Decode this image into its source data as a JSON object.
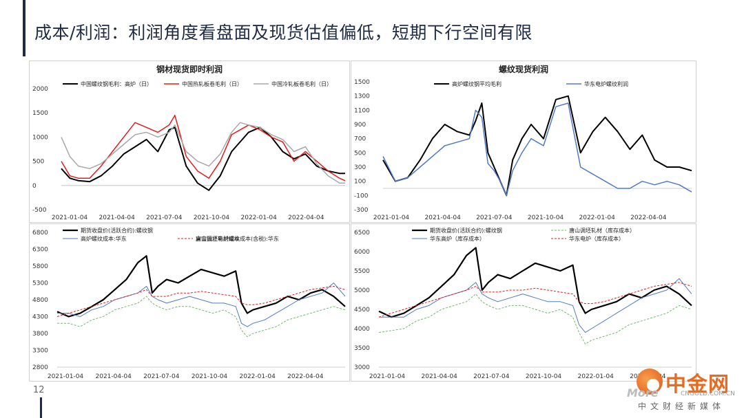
{
  "page": {
    "title": "成本/利润：利润角度看盘面及现货估值偏低，短期下行空间有限",
    "page_number": "12"
  },
  "logo": {
    "name": "中金网",
    "url": "CNGOLD.COM.CN",
    "sub": "中文财经新媒体",
    "more": "More"
  },
  "chart_data": [
    {
      "id": "c1",
      "type": "line",
      "title": "钢材现货即时利润",
      "ylim": [
        -500,
        2000
      ],
      "yticks": [
        2000,
        1500,
        1000,
        500,
        0,
        -500
      ],
      "xticks": [
        "2021-01-04",
        "2021-04-04",
        "2021-07-04",
        "2021-10-04",
        "2022-01-04",
        "2022-04-04"
      ],
      "grid": false,
      "legend": "top",
      "series": [
        {
          "name": "中国螺纹钢毛利：高炉（日）",
          "color": "#000000",
          "width": 2,
          "x": [
            0,
            3,
            6,
            10,
            14,
            18,
            22,
            26,
            30,
            34,
            38,
            40,
            44,
            48,
            52,
            56,
            60,
            63,
            66,
            70,
            74,
            78,
            82,
            86,
            90,
            94,
            98,
            100
          ],
          "y": [
            350,
            150,
            100,
            80,
            200,
            400,
            650,
            800,
            950,
            700,
            1150,
            1200,
            400,
            50,
            -100,
            200,
            700,
            900,
            1100,
            1200,
            1000,
            700,
            550,
            650,
            400,
            300,
            250,
            250
          ]
        },
        {
          "name": "中国热轧板卷毛利（日）",
          "color": "#e01b1b",
          "width": 1.5,
          "x": [
            0,
            3,
            6,
            10,
            14,
            18,
            22,
            26,
            30,
            34,
            38,
            40,
            44,
            48,
            52,
            56,
            60,
            63,
            66,
            70,
            74,
            78,
            82,
            86,
            90,
            94,
            98,
            100
          ],
          "y": [
            500,
            200,
            150,
            150,
            400,
            700,
            1000,
            1300,
            1200,
            1100,
            1250,
            1450,
            600,
            300,
            150,
            500,
            1050,
            1150,
            1250,
            1150,
            1000,
            900,
            500,
            700,
            500,
            300,
            150,
            100
          ]
        },
        {
          "name": "中国冷轧板卷毛利（日）",
          "color": "#a8a8a8",
          "width": 1.5,
          "x": [
            0,
            3,
            6,
            10,
            14,
            18,
            22,
            26,
            30,
            34,
            38,
            40,
            44,
            48,
            52,
            56,
            60,
            63,
            66,
            70,
            74,
            78,
            82,
            86,
            90,
            94,
            98,
            100
          ],
          "y": [
            1000,
            600,
            400,
            350,
            450,
            650,
            850,
            1050,
            1100,
            1000,
            1100,
            1250,
            700,
            500,
            400,
            650,
            1100,
            1300,
            1250,
            1200,
            1050,
            950,
            700,
            800,
            450,
            200,
            50,
            50
          ]
        }
      ]
    },
    {
      "id": "c2",
      "type": "line",
      "title": "螺纹现货利润",
      "ylim": [
        -300,
        1500
      ],
      "yticks": [
        1500,
        1300,
        1100,
        900,
        700,
        500,
        300,
        100,
        -100,
        -300
      ],
      "xticks": [
        "2021-01-04",
        "2021-04-04",
        "2021-07-04",
        "2021-10-04",
        "2022-01-04",
        "2022-04-04"
      ],
      "grid": false,
      "legend": "top",
      "series": [
        {
          "name": "高炉螺纹钢平均毛利",
          "color": "#000000",
          "width": 2,
          "x": [
            0,
            4,
            8,
            12,
            16,
            20,
            24,
            28,
            30,
            32,
            34,
            36,
            38,
            40,
            42,
            45,
            48,
            52,
            56,
            60,
            64,
            68,
            72,
            76,
            80,
            84,
            88,
            92,
            96,
            100
          ],
          "y": [
            400,
            100,
            150,
            400,
            700,
            900,
            800,
            750,
            950,
            1200,
            500,
            300,
            100,
            -100,
            400,
            700,
            900,
            700,
            1250,
            1300,
            500,
            800,
            1000,
            800,
            550,
            750,
            400,
            300,
            300,
            250
          ]
        },
        {
          "name": "华东电炉螺纹利润",
          "color": "#4f7ac7",
          "width": 1.5,
          "x": [
            0,
            4,
            8,
            12,
            16,
            20,
            24,
            28,
            30,
            32,
            34,
            36,
            38,
            40,
            42,
            45,
            48,
            52,
            56,
            60,
            64,
            68,
            72,
            76,
            80,
            84,
            88,
            92,
            96,
            100
          ],
          "y": [
            450,
            100,
            150,
            300,
            450,
            600,
            650,
            700,
            1100,
            1000,
            350,
            250,
            100,
            -100,
            250,
            500,
            700,
            600,
            1150,
            1200,
            300,
            200,
            100,
            0,
            0,
            100,
            50,
            100,
            50,
            -50
          ]
        }
      ]
    },
    {
      "id": "c3",
      "type": "line",
      "title": "",
      "ylim": [
        2800,
        6800
      ],
      "yticks": [
        6800,
        6300,
        5800,
        5300,
        4800,
        4300,
        3800,
        3300,
        2800
      ],
      "xticks": [
        "2021-01-04",
        "2021-04-04",
        "2021-07-04",
        "2021-10-04",
        "2022-01-04",
        "2022-04-04"
      ],
      "grid": false,
      "legend": "top",
      "series": [
        {
          "name": "期货收盘价(活跃合约):螺纹钢",
          "color": "#000000",
          "width": 2.2,
          "x": [
            0,
            4,
            8,
            12,
            16,
            20,
            24,
            28,
            31,
            33,
            35,
            38,
            42,
            46,
            50,
            54,
            58,
            62,
            64,
            66,
            68,
            72,
            76,
            80,
            84,
            88,
            92,
            96,
            100
          ],
          "y": [
            4450,
            4300,
            4400,
            4600,
            4800,
            5100,
            5400,
            5900,
            6100,
            5000,
            5200,
            5400,
            5300,
            5500,
            5700,
            5600,
            5500,
            5650,
            4700,
            4400,
            4500,
            4600,
            4700,
            4900,
            4800,
            5000,
            5100,
            4900,
            4600
          ]
        },
        {
          "name": "唐山调坯轧材成本",
          "color": "#6fb86a",
          "width": 1,
          "dash": "3,2",
          "x": [
            0,
            4,
            8,
            12,
            16,
            20,
            24,
            28,
            31,
            33,
            35,
            38,
            42,
            46,
            50,
            54,
            58,
            62,
            64,
            66,
            68,
            72,
            76,
            80,
            84,
            88,
            92,
            96,
            100
          ],
          "y": [
            4100,
            4100,
            4000,
            4200,
            4300,
            4500,
            4600,
            4700,
            4900,
            4700,
            4600,
            4500,
            4600,
            4600,
            4500,
            4400,
            4500,
            4300,
            3900,
            3700,
            3800,
            3900,
            4000,
            4200,
            4300,
            4400,
            4500,
            4600,
            4500
          ]
        },
        {
          "name": "高炉螺纹成本:华东",
          "color": "#4f7ac7",
          "width": 1,
          "x": [
            0,
            4,
            8,
            12,
            16,
            20,
            24,
            28,
            31,
            33,
            35,
            38,
            42,
            46,
            50,
            54,
            58,
            62,
            64,
            66,
            68,
            72,
            76,
            80,
            84,
            88,
            92,
            96,
            100
          ],
          "y": [
            4400,
            4400,
            4300,
            4500,
            4600,
            4800,
            4900,
            5000,
            5200,
            4900,
            4800,
            4700,
            4800,
            4900,
            4800,
            4700,
            4700,
            4600,
            4100,
            4000,
            4100,
            4200,
            4400,
            4600,
            4800,
            4900,
            5000,
            5300,
            4900
          ]
        },
        {
          "name": "富宝独立电炉螺纹成本(含税):华东",
          "color": "#e01b1b",
          "width": 1,
          "dash": "3,2",
          "x": [
            0,
            4,
            8,
            12,
            16,
            20,
            24,
            28,
            31,
            33,
            35,
            38,
            42,
            46,
            50,
            54,
            58,
            62,
            64,
            66,
            68,
            72,
            76,
            80,
            84,
            88,
            92,
            96,
            100
          ],
          "y": [
            4300,
            4400,
            4500,
            4600,
            4700,
            4800,
            4900,
            5000,
            5100,
            4900,
            4900,
            4900,
            5000,
            5000,
            5050,
            5000,
            4950,
            4900,
            4700,
            4650,
            4650,
            4700,
            4800,
            4900,
            5000,
            5100,
            5150,
            5200,
            5100
          ]
        }
      ]
    },
    {
      "id": "c4",
      "type": "line",
      "title": "",
      "ylim": [
        3000,
        6500
      ],
      "yticks": [
        6500,
        6000,
        5500,
        5000,
        4500,
        4000,
        3500,
        3000
      ],
      "xticks": [
        "2021-01-04",
        "2021-04-04",
        "2021-07-04",
        "2021-10-04",
        "2022-01-04",
        "2022-04-04"
      ],
      "grid": false,
      "legend": "top",
      "series": [
        {
          "name": "期货收盘价(活跃合约):螺纹钢",
          "color": "#000000",
          "width": 2.2,
          "x": [
            0,
            4,
            8,
            12,
            16,
            20,
            24,
            28,
            31,
            33,
            35,
            38,
            42,
            46,
            50,
            54,
            58,
            62,
            64,
            66,
            68,
            72,
            76,
            80,
            84,
            88,
            92,
            96,
            100
          ],
          "y": [
            4450,
            4300,
            4400,
            4600,
            4800,
            5100,
            5400,
            5900,
            6100,
            5000,
            5200,
            5400,
            5300,
            5500,
            5700,
            5600,
            5500,
            5650,
            4700,
            4400,
            4500,
            4600,
            4700,
            4900,
            4800,
            5000,
            5100,
            4900,
            4600
          ]
        },
        {
          "name": "唐山调坯轧材（库存成本）",
          "color": "#6fb86a",
          "width": 1,
          "dash": "3,2",
          "x": [
            0,
            4,
            8,
            12,
            16,
            20,
            24,
            28,
            31,
            33,
            35,
            38,
            42,
            46,
            50,
            54,
            58,
            62,
            64,
            66,
            68,
            72,
            76,
            80,
            84,
            88,
            92,
            96,
            100
          ],
          "y": [
            3900,
            3950,
            4000,
            4200,
            4300,
            4500,
            4600,
            4700,
            4900,
            4700,
            4600,
            4500,
            4600,
            4600,
            4500,
            4400,
            4500,
            4300,
            3900,
            3600,
            3700,
            3800,
            3900,
            4100,
            4200,
            4300,
            4400,
            4600,
            4500
          ]
        },
        {
          "name": "华东高炉（库存成本）",
          "color": "#4f7ac7",
          "width": 1,
          "x": [
            0,
            4,
            8,
            12,
            16,
            20,
            24,
            28,
            31,
            33,
            35,
            38,
            42,
            46,
            50,
            54,
            58,
            62,
            64,
            66,
            68,
            72,
            76,
            80,
            84,
            88,
            92,
            96,
            100
          ],
          "y": [
            4300,
            4300,
            4300,
            4500,
            4600,
            4800,
            4900,
            5000,
            5200,
            4900,
            4800,
            4700,
            4800,
            4900,
            4800,
            4700,
            4700,
            4600,
            4100,
            3900,
            4000,
            4200,
            4400,
            4600,
            4800,
            4900,
            5000,
            5300,
            4900
          ]
        },
        {
          "name": "华东电炉（库存成本）",
          "color": "#e01b1b",
          "width": 1,
          "dash": "3,2",
          "x": [
            0,
            4,
            8,
            12,
            16,
            20,
            24,
            28,
            31,
            33,
            35,
            38,
            42,
            46,
            50,
            54,
            58,
            62,
            64,
            66,
            68,
            72,
            76,
            80,
            84,
            88,
            92,
            96,
            100
          ],
          "y": [
            4300,
            4400,
            4500,
            4600,
            4700,
            4800,
            4900,
            5000,
            5100,
            4950,
            4950,
            4950,
            5000,
            5000,
            5050,
            5000,
            4950,
            4900,
            4700,
            4650,
            4650,
            4700,
            4800,
            4900,
            5000,
            5100,
            5150,
            5200,
            5100
          ]
        }
      ]
    }
  ]
}
